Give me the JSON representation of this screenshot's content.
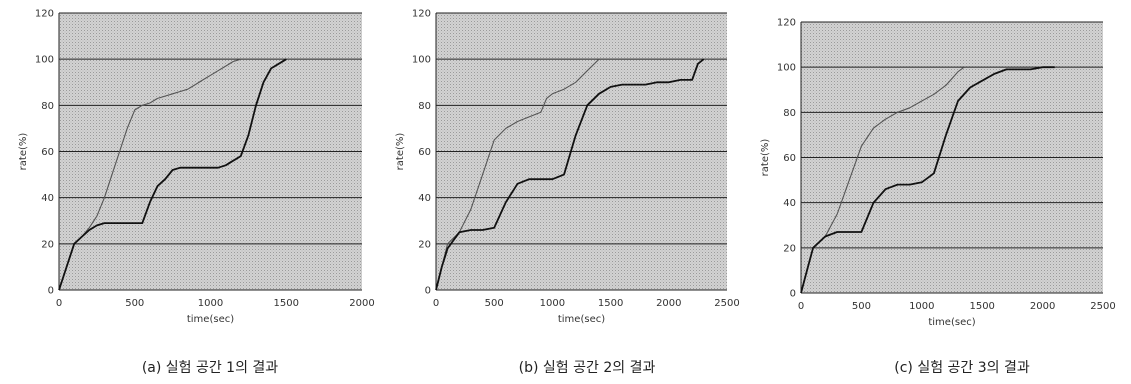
{
  "chart_data": [
    {
      "type": "line",
      "caption": "(a) 실험 공간 1의 결과",
      "xlabel": "time(sec)",
      "ylabel": "rate(%)",
      "xlim": [
        0,
        2000
      ],
      "ylim": [
        0,
        120
      ],
      "xticks": [
        "0",
        "500",
        "1000",
        "1500",
        "2000"
      ],
      "yticks": [
        "0",
        "20",
        "40",
        "60",
        "80",
        "100",
        "120"
      ],
      "grid": "horizontal",
      "legend": "none",
      "series": [
        {
          "color": "#555555",
          "points": [
            [
              0,
              0
            ],
            [
              50,
              10
            ],
            [
              100,
              20
            ],
            [
              150,
              23
            ],
            [
              200,
              27
            ],
            [
              250,
              32
            ],
            [
              300,
              40
            ],
            [
              350,
              50
            ],
            [
              400,
              60
            ],
            [
              450,
              70
            ],
            [
              500,
              78
            ],
            [
              550,
              80
            ],
            [
              600,
              81
            ],
            [
              650,
              83
            ],
            [
              700,
              84
            ],
            [
              750,
              85
            ],
            [
              800,
              86
            ],
            [
              850,
              87
            ],
            [
              900,
              89
            ],
            [
              950,
              91
            ],
            [
              1000,
              93
            ],
            [
              1050,
              95
            ],
            [
              1100,
              97
            ],
            [
              1150,
              99
            ],
            [
              1200,
              100
            ]
          ]
        },
        {
          "color": "#111111",
          "points": [
            [
              0,
              0
            ],
            [
              50,
              10
            ],
            [
              100,
              20
            ],
            [
              150,
              23
            ],
            [
              200,
              26
            ],
            [
              250,
              28
            ],
            [
              300,
              29
            ],
            [
              350,
              29
            ],
            [
              400,
              29
            ],
            [
              450,
              29
            ],
            [
              500,
              29
            ],
            [
              550,
              29
            ],
            [
              600,
              38
            ],
            [
              650,
              45
            ],
            [
              700,
              48
            ],
            [
              750,
              52
            ],
            [
              800,
              53
            ],
            [
              850,
              53
            ],
            [
              900,
              53
            ],
            [
              950,
              53
            ],
            [
              1000,
              53
            ],
            [
              1050,
              53
            ],
            [
              1100,
              54
            ],
            [
              1150,
              56
            ],
            [
              1200,
              58
            ],
            [
              1250,
              67
            ],
            [
              1300,
              80
            ],
            [
              1350,
              90
            ],
            [
              1400,
              96
            ],
            [
              1450,
              98
            ],
            [
              1500,
              100
            ]
          ]
        }
      ]
    },
    {
      "type": "line",
      "caption": "(b) 실험 공간 2의 결과",
      "xlabel": "time(sec)",
      "ylabel": "rate(%)",
      "xlim": [
        0,
        2500
      ],
      "ylim": [
        0,
        120
      ],
      "xticks": [
        "0",
        "500",
        "1000",
        "1500",
        "2000",
        "2500"
      ],
      "yticks": [
        "0",
        "20",
        "40",
        "60",
        "80",
        "100",
        "120"
      ],
      "grid": "horizontal",
      "legend": "none",
      "series": [
        {
          "color": "#555555",
          "points": [
            [
              0,
              0
            ],
            [
              50,
              10
            ],
            [
              100,
              20
            ],
            [
              200,
              25
            ],
            [
              300,
              35
            ],
            [
              400,
              50
            ],
            [
              500,
              65
            ],
            [
              600,
              70
            ],
            [
              700,
              73
            ],
            [
              800,
              75
            ],
            [
              900,
              77
            ],
            [
              950,
              83
            ],
            [
              1000,
              85
            ],
            [
              1100,
              87
            ],
            [
              1200,
              90
            ],
            [
              1300,
              95
            ],
            [
              1400,
              100
            ]
          ]
        },
        {
          "color": "#111111",
          "points": [
            [
              0,
              0
            ],
            [
              50,
              10
            ],
            [
              100,
              18
            ],
            [
              200,
              25
            ],
            [
              300,
              26
            ],
            [
              400,
              26
            ],
            [
              500,
              27
            ],
            [
              600,
              38
            ],
            [
              700,
              46
            ],
            [
              800,
              48
            ],
            [
              900,
              48
            ],
            [
              1000,
              48
            ],
            [
              1100,
              50
            ],
            [
              1200,
              67
            ],
            [
              1300,
              80
            ],
            [
              1400,
              85
            ],
            [
              1500,
              88
            ],
            [
              1600,
              89
            ],
            [
              1700,
              89
            ],
            [
              1800,
              89
            ],
            [
              1900,
              90
            ],
            [
              2000,
              90
            ],
            [
              2100,
              91
            ],
            [
              2200,
              91
            ],
            [
              2250,
              98
            ],
            [
              2300,
              100
            ]
          ]
        }
      ]
    },
    {
      "type": "line",
      "caption": "(c) 실험 공간 3의 결과",
      "xlabel": "time(sec)",
      "ylabel": "rate(%)",
      "xlim": [
        0,
        2500
      ],
      "ylim": [
        0,
        120
      ],
      "xticks": [
        "0",
        "500",
        "1000",
        "1500",
        "2000",
        "2500"
      ],
      "yticks": [
        "0",
        "20",
        "40",
        "60",
        "80",
        "100",
        "120"
      ],
      "grid": "horizontal",
      "legend": "none",
      "series": [
        {
          "color": "#555555",
          "points": [
            [
              0,
              0
            ],
            [
              50,
              10
            ],
            [
              100,
              20
            ],
            [
              200,
              25
            ],
            [
              300,
              35
            ],
            [
              400,
              50
            ],
            [
              500,
              65
            ],
            [
              600,
              73
            ],
            [
              700,
              77
            ],
            [
              800,
              80
            ],
            [
              900,
              82
            ],
            [
              1000,
              85
            ],
            [
              1100,
              88
            ],
            [
              1200,
              92
            ],
            [
              1300,
              98
            ],
            [
              1350,
              100
            ]
          ]
        },
        {
          "color": "#111111",
          "points": [
            [
              0,
              0
            ],
            [
              50,
              10
            ],
            [
              100,
              20
            ],
            [
              200,
              25
            ],
            [
              300,
              27
            ],
            [
              400,
              27
            ],
            [
              500,
              27
            ],
            [
              600,
              40
            ],
            [
              700,
              46
            ],
            [
              800,
              48
            ],
            [
              900,
              48
            ],
            [
              1000,
              49
            ],
            [
              1100,
              53
            ],
            [
              1200,
              70
            ],
            [
              1300,
              85
            ],
            [
              1400,
              91
            ],
            [
              1500,
              94
            ],
            [
              1600,
              97
            ],
            [
              1700,
              99
            ],
            [
              1800,
              99
            ],
            [
              1900,
              99
            ],
            [
              2000,
              100
            ],
            [
              2100,
              100
            ]
          ]
        }
      ]
    }
  ]
}
